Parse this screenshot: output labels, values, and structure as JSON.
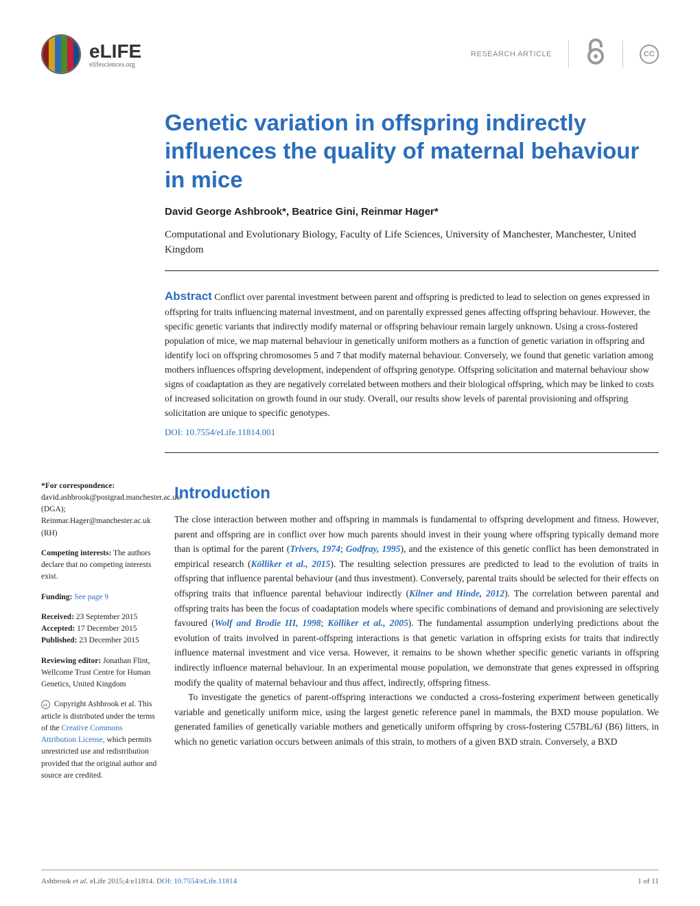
{
  "header": {
    "logo_name": "eLIFE",
    "logo_sub": "elifesciences.org",
    "article_type": "RESEARCH ARTICLE",
    "logo_colors": [
      "#8b1a1a",
      "#d4a017",
      "#2a6ebb",
      "#4a8b2a",
      "#c41e3a",
      "#1a4a8b"
    ]
  },
  "title": "Genetic variation in offspring indirectly influences the quality of maternal behaviour in mice",
  "authors": "David George Ashbrook*, Beatrice Gini, Reinmar Hager*",
  "affiliation": "Computational and Evolutionary Biology, Faculty of Life Sciences, University of Manchester, Manchester, United Kingdom",
  "abstract": {
    "label": "Abstract",
    "text": "Conflict over parental investment between parent and offspring is predicted to lead to selection on genes expressed in offspring for traits influencing maternal investment, and on parentally expressed genes affecting offspring behaviour. However, the specific genetic variants that indirectly modify maternal or offspring behaviour remain largely unknown. Using a cross-fostered population of mice, we map maternal behaviour in genetically uniform mothers as a function of genetic variation in offspring and identify loci on offspring chromosomes 5 and 7 that modify maternal behaviour. Conversely, we found that genetic variation among mothers influences offspring development, independent of offspring genotype. Offspring solicitation and maternal behaviour show signs of coadaptation as they are negatively correlated between mothers and their biological offspring, which may be linked to costs of increased solicitation on growth found in our study. Overall, our results show levels of parental provisioning and offspring solicitation are unique to specific genotypes.",
    "doi": "DOI: 10.7554/eLife.11814.001"
  },
  "sidebar": {
    "correspondence_label": "*For correspondence:",
    "correspondence": " david.ashbrook@postgrad.manchester.ac.uk (DGA); Reinmar.Hager@manchester.ac.uk (RH)",
    "competing_label": "Competing interests:",
    "competing": " The authors declare that no competing interests exist.",
    "funding_label": "Funding:",
    "funding_link": " See page 9",
    "received_label": "Received:",
    "received": " 23 September 2015",
    "accepted_label": "Accepted:",
    "accepted": " 17 December 2015",
    "published_label": "Published:",
    "published": " 23 December 2015",
    "reviewing_label": "Reviewing editor:",
    "reviewing": " Jonathan Flint, Wellcome Trust Centre for Human Genetics, United Kingdom",
    "copyright_pre": " Copyright Ashbrook et al. This article is distributed under the terms of the ",
    "copyright_link": "Creative Commons Attribution License,",
    "copyright_post": " which permits unrestricted use and redistribution provided that the original author and source are credited."
  },
  "intro": {
    "title": "Introduction",
    "p1_a": "The close interaction between mother and offspring in mammals is fundamental to offspring development and fitness. However, parent and offspring are in conflict over how much parents should invest in their young where offspring typically demand more than is optimal for the parent (",
    "ref1": "Trivers, 1974",
    "p1_b": "; ",
    "ref2": "Godfray, 1995",
    "p1_c": "), and the existence of this genetic conflict has been demonstrated in empirical research (",
    "ref3": "Kölliker et al., 2015",
    "p1_d": "). The resulting selection pressures are predicted to lead to the evolution of traits in offspring that influence parental behaviour (and thus investment). Conversely, parental traits should be selected for their effects on offspring traits that influence parental behaviour indirectly (",
    "ref4": "Kilner and Hinde, 2012",
    "p1_e": "). The correlation between parental and offspring traits has been the focus of coadaptation models where specific combinations of demand and provisioning are selectively favoured (",
    "ref5": "Wolf and Brodie III, 1998",
    "p1_f": "; ",
    "ref6": "Kölliker et al., 2005",
    "p1_g": "). The fundamental assumption underlying predictions about the evolution of traits involved in parent-offspring interactions is that genetic variation in offspring exists for traits that indirectly influence maternal investment and vice versa. However, it remains to be shown whether specific genetic variants in offspring indirectly influence maternal behaviour. In an experimental mouse population, we demonstrate that genes expressed in offspring modify the quality of maternal behaviour and thus affect, indirectly, offspring fitness.",
    "p2": "To investigate the genetics of parent-offspring interactions we conducted a cross-fostering experiment between genetically variable and genetically uniform mice, using the largest genetic reference panel in mammals, the BXD mouse population. We generated families of genetically variable mothers and genetically uniform offspring by cross-fostering C57BL/6J (B6) litters, in which no genetic variation occurs between animals of this strain, to mothers of a given BXD strain. Conversely, a BXD"
  },
  "footer": {
    "cite_a": "Ashbrook ",
    "cite_i": "et al",
    "cite_b": ". eLife 2015;4:e11814. ",
    "doi": "DOI: 10.7554/eLife.11814",
    "page": "1 of 11"
  },
  "colors": {
    "accent": "#2a6ebb"
  }
}
